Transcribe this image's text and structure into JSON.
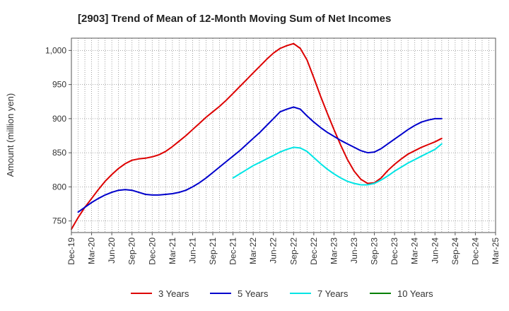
{
  "chart_data": {
    "type": "line",
    "title": "[2903]  Trend of Mean of 12-Month Moving Sum of Net Incomes",
    "xlabel": "",
    "ylabel": "Amount (million yen)",
    "x_ticks": [
      "Dec-19",
      "Mar-20",
      "Jun-20",
      "Sep-20",
      "Dec-20",
      "Mar-21",
      "Jun-21",
      "Sep-21",
      "Dec-21",
      "Mar-22",
      "Jun-22",
      "Sep-22",
      "Dec-22",
      "Mar-23",
      "Jun-23",
      "Sep-23",
      "Dec-23",
      "Mar-24",
      "Jun-24",
      "Sep-24",
      "Dec-24",
      "Mar-25"
    ],
    "y_ticks": [
      750,
      800,
      850,
      900,
      950,
      1000
    ],
    "y_tick_labels": [
      "750",
      "800",
      "850",
      "900",
      "950",
      "1,000"
    ],
    "ylim": [
      733,
      1018
    ],
    "grid": true,
    "legend_position": "bottom",
    "series": [
      {
        "name": "3 Years",
        "color": "#dd0000",
        "values": [
          [
            0,
            738
          ],
          [
            1,
            755
          ],
          [
            2,
            770
          ],
          [
            3,
            783
          ],
          [
            4,
            796
          ],
          [
            5,
            808
          ],
          [
            6,
            818
          ],
          [
            7,
            827
          ],
          [
            8,
            834
          ],
          [
            9,
            839
          ],
          [
            10,
            841
          ],
          [
            11,
            842
          ],
          [
            12,
            844
          ],
          [
            13,
            847
          ],
          [
            14,
            852
          ],
          [
            15,
            859
          ],
          [
            16,
            867
          ],
          [
            17,
            875
          ],
          [
            18,
            884
          ],
          [
            19,
            893
          ],
          [
            20,
            902
          ],
          [
            21,
            910
          ],
          [
            22,
            918
          ],
          [
            23,
            927
          ],
          [
            24,
            937
          ],
          [
            25,
            947
          ],
          [
            26,
            957
          ],
          [
            27,
            967
          ],
          [
            28,
            977
          ],
          [
            29,
            987
          ],
          [
            30,
            996
          ],
          [
            31,
            1003
          ],
          [
            32,
            1007
          ],
          [
            33,
            1010
          ],
          [
            34,
            1003
          ],
          [
            35,
            986
          ],
          [
            36,
            960
          ],
          [
            37,
            933
          ],
          [
            38,
            908
          ],
          [
            39,
            884
          ],
          [
            40,
            861
          ],
          [
            41,
            840
          ],
          [
            42,
            823
          ],
          [
            43,
            811
          ],
          [
            44,
            805
          ],
          [
            45,
            806
          ],
          [
            46,
            813
          ],
          [
            47,
            824
          ],
          [
            48,
            833
          ],
          [
            49,
            841
          ],
          [
            50,
            848
          ],
          [
            51,
            853
          ],
          [
            52,
            858
          ],
          [
            53,
            862
          ],
          [
            54,
            866
          ],
          [
            55,
            871
          ]
        ]
      },
      {
        "name": "5 Years",
        "color": "#0000cc",
        "values": [
          [
            1,
            763
          ],
          [
            2,
            770
          ],
          [
            3,
            777
          ],
          [
            4,
            783
          ],
          [
            5,
            788
          ],
          [
            6,
            792
          ],
          [
            7,
            795
          ],
          [
            8,
            796
          ],
          [
            9,
            795
          ],
          [
            10,
            792
          ],
          [
            11,
            789
          ],
          [
            12,
            788
          ],
          [
            13,
            788
          ],
          [
            14,
            789
          ],
          [
            15,
            790
          ],
          [
            16,
            792
          ],
          [
            17,
            795
          ],
          [
            18,
            800
          ],
          [
            19,
            806
          ],
          [
            20,
            813
          ],
          [
            21,
            821
          ],
          [
            22,
            829
          ],
          [
            23,
            837
          ],
          [
            24,
            845
          ],
          [
            25,
            853
          ],
          [
            26,
            862
          ],
          [
            27,
            871
          ],
          [
            28,
            880
          ],
          [
            29,
            890
          ],
          [
            30,
            900
          ],
          [
            31,
            910
          ],
          [
            32,
            914
          ],
          [
            33,
            917
          ],
          [
            34,
            914
          ],
          [
            35,
            904
          ],
          [
            36,
            895
          ],
          [
            37,
            887
          ],
          [
            38,
            880
          ],
          [
            39,
            874
          ],
          [
            40,
            868
          ],
          [
            41,
            863
          ],
          [
            42,
            858
          ],
          [
            43,
            853
          ],
          [
            44,
            850
          ],
          [
            45,
            851
          ],
          [
            46,
            856
          ],
          [
            47,
            863
          ],
          [
            48,
            870
          ],
          [
            49,
            877
          ],
          [
            50,
            884
          ],
          [
            51,
            890
          ],
          [
            52,
            895
          ],
          [
            53,
            898
          ],
          [
            54,
            900
          ],
          [
            55,
            900
          ]
        ]
      },
      {
        "name": "7 Years",
        "color": "#00e5e5",
        "values": [
          [
            24,
            813
          ],
          [
            25,
            819
          ],
          [
            26,
            825
          ],
          [
            27,
            831
          ],
          [
            28,
            836
          ],
          [
            29,
            841
          ],
          [
            30,
            846
          ],
          [
            31,
            851
          ],
          [
            32,
            855
          ],
          [
            33,
            858
          ],
          [
            34,
            857
          ],
          [
            35,
            852
          ],
          [
            36,
            843
          ],
          [
            37,
            834
          ],
          [
            38,
            826
          ],
          [
            39,
            819
          ],
          [
            40,
            813
          ],
          [
            41,
            808
          ],
          [
            42,
            805
          ],
          [
            43,
            803
          ],
          [
            44,
            803
          ],
          [
            45,
            805
          ],
          [
            46,
            810
          ],
          [
            47,
            816
          ],
          [
            48,
            823
          ],
          [
            49,
            829
          ],
          [
            50,
            835
          ],
          [
            51,
            840
          ],
          [
            52,
            845
          ],
          [
            53,
            850
          ],
          [
            54,
            855
          ],
          [
            55,
            863
          ]
        ]
      },
      {
        "name": "10 Years",
        "color": "#008000",
        "values": []
      }
    ]
  }
}
